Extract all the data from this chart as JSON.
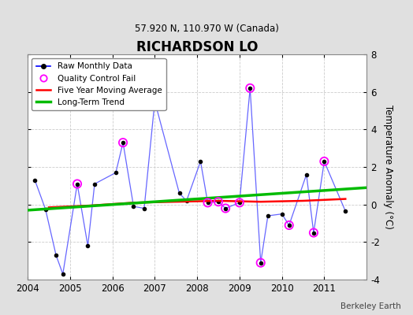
{
  "title": "RICHARDSON LO",
  "subtitle": "57.920 N, 110.970 W (Canada)",
  "credit": "Berkeley Earth",
  "ylabel": "Temperature Anomaly (°C)",
  "ylim": [
    -4,
    8
  ],
  "xlim": [
    2004.0,
    2012.0
  ],
  "yticks": [
    -4,
    -2,
    0,
    2,
    4,
    6,
    8
  ],
  "xticks": [
    2004,
    2005,
    2006,
    2007,
    2008,
    2009,
    2010,
    2011
  ],
  "background_color": "#e0e0e0",
  "plot_bg_color": "#ffffff",
  "raw_x": [
    2004.17,
    2004.42,
    2004.67,
    2004.83,
    2005.17,
    2005.42,
    2005.58,
    2006.08,
    2006.25,
    2006.5,
    2006.75,
    2007.0,
    2007.58,
    2007.75,
    2008.08,
    2008.25,
    2008.5,
    2008.67,
    2009.0,
    2009.25,
    2009.5,
    2009.67,
    2010.0,
    2010.17,
    2010.58,
    2010.75,
    2011.0,
    2011.5
  ],
  "raw_y": [
    1.3,
    -0.25,
    -2.7,
    -3.7,
    1.1,
    -2.2,
    1.1,
    1.7,
    3.3,
    -0.1,
    -0.2,
    5.5,
    0.6,
    0.2,
    2.3,
    0.1,
    0.15,
    -0.2,
    0.1,
    6.2,
    -3.1,
    -0.6,
    -0.5,
    -1.1,
    1.6,
    -1.5,
    2.3,
    -0.35
  ],
  "qc_fail_x": [
    2005.17,
    2006.25,
    2008.25,
    2008.5,
    2008.67,
    2009.0,
    2009.25,
    2009.5,
    2010.17,
    2010.75,
    2011.0
  ],
  "qc_fail_y": [
    1.1,
    3.3,
    0.1,
    0.15,
    -0.2,
    0.1,
    6.2,
    -3.1,
    -1.1,
    -1.5,
    2.3
  ],
  "moving_avg_x": [
    2004.5,
    2005.5,
    2006.5,
    2007.5,
    2008.5,
    2009.5,
    2010.5,
    2011.5
  ],
  "moving_avg_y": [
    -0.15,
    -0.05,
    0.1,
    0.15,
    0.2,
    0.15,
    0.2,
    0.3
  ],
  "trend_x": [
    2004.0,
    2012.0
  ],
  "trend_y": [
    -0.3,
    0.9
  ],
  "raw_line_color": "#6666ff",
  "raw_dot_color": "#000066",
  "qc_color": "#ff00ff",
  "moving_avg_color": "#ff0000",
  "trend_color": "#00bb00",
  "legend_line_color": "#0000ff"
}
